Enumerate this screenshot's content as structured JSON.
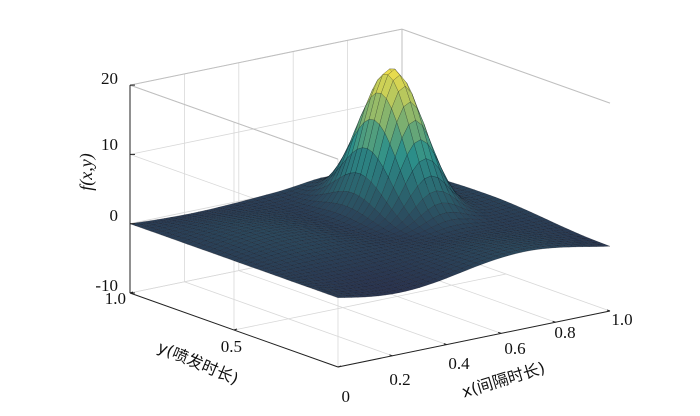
{
  "chart_data": {
    "type": "surface",
    "zlabel": "f(x,y)",
    "xlabel": "x(间隔时长)",
    "ylabel": "y(喷发时长)",
    "xlim": [
      0,
      1.0
    ],
    "ylim": [
      0,
      1.0
    ],
    "zlim": [
      -10,
      20
    ],
    "xticks": [
      "0.2",
      "0.4",
      "0.6",
      "0.8",
      "1.0"
    ],
    "xtick_values": [
      0.2,
      0.4,
      0.6,
      0.8,
      1.0
    ],
    "yticks": [
      "0",
      "0.5",
      "1.0"
    ],
    "ytick_values": [
      0,
      0.5,
      1.0
    ],
    "zticks": [
      "-10",
      "0",
      "10",
      "20"
    ],
    "ztick_values": [
      -10,
      0,
      10,
      20
    ],
    "peak": {
      "x": 0.72,
      "y": 0.68,
      "z": 20
    },
    "grid": true,
    "colormap": "parula-dark",
    "colors": {
      "low": "#2a2c4a",
      "mid": "#2c8f8a",
      "high": "#f3e04a",
      "edge": "#0d0d18"
    }
  }
}
